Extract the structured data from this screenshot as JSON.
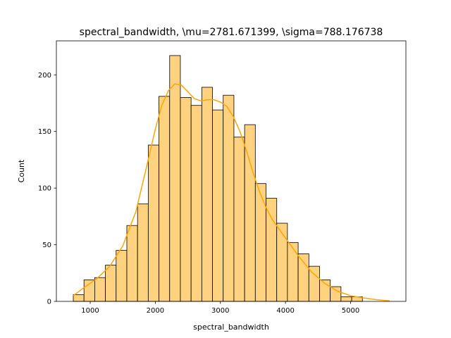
{
  "chart_data": {
    "type": "histogram",
    "title": "spectral_bandwidth, \\mu=2781.671399, \\sigma=788.176738",
    "xlabel": "spectral_bandwidth",
    "ylabel": "Count",
    "xlim": [
      480,
      5850
    ],
    "ylim": [
      0,
      230
    ],
    "x_ticks": [
      1000,
      2000,
      3000,
      4000,
      5000
    ],
    "y_ticks": [
      0,
      50,
      100,
      150,
      200
    ],
    "bin_start": 740,
    "bin_width": 164.5,
    "counts": [
      6,
      19,
      21,
      32,
      45,
      67,
      86,
      138,
      181,
      217,
      180,
      173,
      189,
      169,
      182,
      145,
      156,
      104,
      91,
      69,
      52,
      42,
      31,
      19,
      13,
      4,
      4,
      0,
      0
    ],
    "kde": {
      "x": [
        740,
        900,
        1100,
        1300,
        1500,
        1700,
        1850,
        2000,
        2100,
        2200,
        2300,
        2400,
        2500,
        2600,
        2700,
        2800,
        2900,
        3000,
        3100,
        3200,
        3300,
        3400,
        3500,
        3600,
        3700,
        3800,
        3900,
        4000,
        4200,
        4400,
        4600,
        4800,
        5000,
        5200,
        5400,
        5600
      ],
      "y": [
        5,
        12,
        20,
        31,
        49,
        79,
        115,
        152,
        173,
        186,
        192,
        191,
        185,
        179,
        177,
        178,
        178,
        176,
        172,
        163,
        150,
        133,
        114,
        97,
        83,
        72,
        64,
        56,
        40,
        26,
        16,
        9,
        5,
        3,
        1.5,
        0.5
      ]
    },
    "bar_fill": "#ffd27f",
    "bar_edge": "#000000",
    "kde_color": "#ffa500",
    "grid": false
  }
}
